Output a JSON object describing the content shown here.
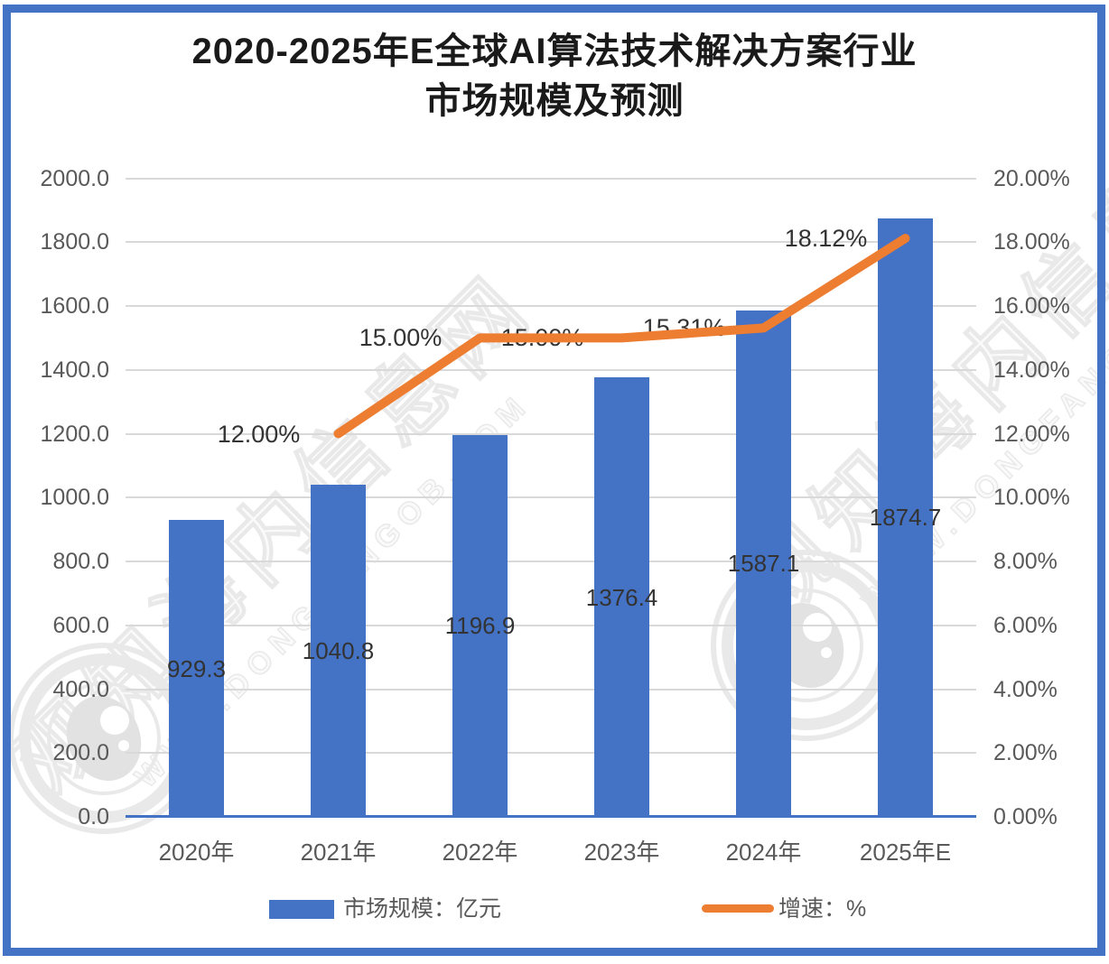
{
  "title": {
    "line1": "2020-2025年E全球AI算法技术解决方案行业",
    "line2": "市场规模及预测"
  },
  "chart_data": {
    "type": "bar",
    "subtype": "bar+line-combo",
    "categories": [
      "2020年",
      "2021年",
      "2022年",
      "2023年",
      "2024年",
      "2025年E"
    ],
    "series": [
      {
        "name": "市场规模：亿元",
        "type": "bar",
        "axis": "left",
        "values": [
          929.3,
          1040.8,
          1196.9,
          1376.4,
          1587.1,
          1874.7
        ],
        "labels": [
          "929.3",
          "1040.8",
          "1196.9",
          "1376.4",
          "1587.1",
          "1874.7"
        ]
      },
      {
        "name": "增速：%",
        "type": "line",
        "axis": "right",
        "start_index": 1,
        "values": [
          12.0,
          15.0,
          15.0,
          15.31,
          18.12
        ],
        "labels": [
          "12.00%",
          "15.00%",
          "15.00%",
          "15.31%",
          "18.12%"
        ]
      }
    ],
    "left_axis": {
      "min": 0,
      "max": 2000,
      "step": 200,
      "tick_labels": [
        "0.0",
        "200.0",
        "400.0",
        "600.0",
        "800.0",
        "1000.0",
        "1200.0",
        "1400.0",
        "1600.0",
        "1800.0",
        "2000.0"
      ]
    },
    "right_axis": {
      "min": 0,
      "max": 20,
      "step": 2,
      "tick_labels": [
        "0.00%",
        "2.00%",
        "4.00%",
        "6.00%",
        "8.00%",
        "10.00%",
        "12.00%",
        "14.00%",
        "16.00%",
        "18.00%",
        "20.00%"
      ]
    },
    "grid": true,
    "legend_position": "bottom",
    "legend": [
      {
        "label": "市场规模：亿元"
      },
      {
        "label": "增速：%"
      }
    ]
  },
  "watermark": {
    "text": "观知海内信息网",
    "url": "WWW.DONGFANGOB.COM"
  },
  "colors": {
    "bar": "#4472C4",
    "line": "#ED7D31",
    "grid": "#D9D9D9",
    "axis_line": "#4472C4",
    "axis_text": "#595959",
    "data_label": "#333333",
    "title": "#1A1A1A",
    "frame": "#4472C4",
    "watermark": "#E9E9E9"
  }
}
